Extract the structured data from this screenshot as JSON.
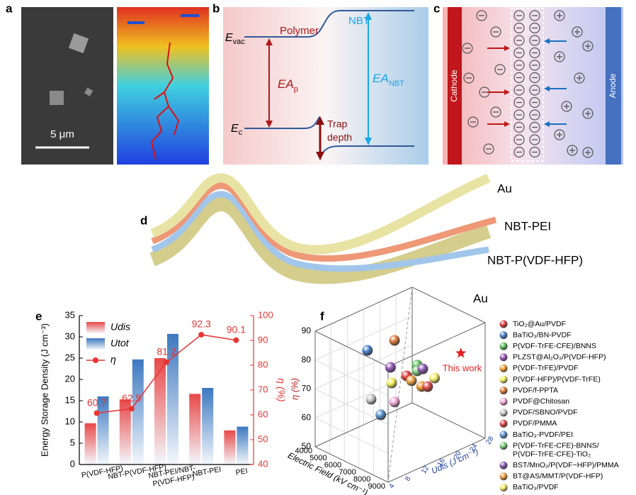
{
  "panel_labels": [
    "a",
    "b",
    "c",
    "d",
    "e",
    "f"
  ],
  "panel_a": {
    "scale_bar": "5 μm"
  },
  "panel_b": {
    "polymer": "Polymer",
    "nbt": "NBT",
    "e_vac": {
      "main": "E",
      "sub": "vac"
    },
    "e_c": {
      "main": "E",
      "sub": "c"
    },
    "ea_p": {
      "main": "EA",
      "sub": "p"
    },
    "ea_nbt": {
      "main": "EA",
      "sub": "NBT"
    },
    "trap_depth": [
      "Trap",
      "depth"
    ]
  },
  "panel_c": {
    "cathode": "Cathode",
    "anode": "Anode"
  },
  "panel_d": {
    "layers": [
      "Au",
      "NBT-PEI",
      "NBT-P(VDF-HFP)",
      "Au"
    ]
  },
  "chart_data": [
    {
      "type": "bar",
      "ylabel": "Energy Storage Density (J cm⁻³)",
      "y2label": "η (%)",
      "categories": [
        "P(VDF-HFP)",
        "NBT-P(VDF-HFP)",
        "NBT-PEI/NBT-\nP(VDF-HFP)",
        "NBT-PEI",
        "PEI"
      ],
      "series": [
        {
          "name": "Udis",
          "color": "#e84848",
          "values": [
            9.7,
            15.3,
            25.0,
            16.6,
            8.0
          ]
        },
        {
          "name": "Utot",
          "color": "#3c78c0",
          "values": [
            16.0,
            24.7,
            30.7,
            18.0,
            8.9
          ]
        },
        {
          "name": "η",
          "color": "#e83434",
          "values": [
            60.7,
            62.5,
            81.2,
            92.3,
            90.1
          ],
          "axis": "y2",
          "type": "line"
        }
      ],
      "ylim": [
        0,
        35
      ],
      "yticks": [
        0,
        5,
        10,
        15,
        20,
        25,
        30,
        35
      ],
      "y2lim": [
        40,
        100
      ],
      "y2ticks": [
        40,
        50,
        60,
        70,
        80,
        90,
        100
      ],
      "legend": "upper left"
    },
    {
      "type": "scatter3d",
      "xlabel": "Electric Field (kV cm⁻¹)",
      "ylabel": "η (%)",
      "zlabel": "Udis (J cm⁻³)",
      "xlim": [
        4000,
        9000
      ],
      "xticks": [
        4000,
        5000,
        6000,
        7000,
        8000,
        9000
      ],
      "ylim": [
        50,
        90
      ],
      "yticks": [
        50,
        60,
        70,
        80,
        90
      ],
      "zlim": [
        4,
        28
      ],
      "zticks": [
        4,
        8,
        12,
        16,
        20,
        24,
        28
      ],
      "annotation": "This work",
      "series": [
        {
          "name": "TiO₂@Au/PVDF",
          "color": "#e04040",
          "x": [
            7000
          ],
          "y": [
            74.4
          ],
          "z": [
            15.8
          ]
        },
        {
          "name": "BaTiO₃/BN-PVDF",
          "color": "#4a80c8",
          "x": [
            7000
          ],
          "y": [
            89.4
          ],
          "z": [
            6.1
          ]
        },
        {
          "name": "P(VDF-TrFE-CFE)/BNNS",
          "color": "#5cbc5c",
          "x": [
            7000
          ],
          "y": [
            76.5
          ],
          "z": [
            18.4
          ]
        },
        {
          "name": "PLZST@Al₂O₃/P(VDF-HFP)",
          "color": "#9a5ab8",
          "x": [
            7000
          ],
          "y": [
            79.9
          ],
          "z": [
            11.8
          ]
        },
        {
          "name": "P(VDF-TrFE)/PVDF",
          "color": "#f09a30",
          "x": [
            7000
          ],
          "y": [
            68.4
          ],
          "z": [
            19.5
          ]
        },
        {
          "name": "P(VDF-HFP)/P(VDF-TrFE)",
          "color": "#f2ee5a",
          "x": [
            7000
          ],
          "y": [
            74.3
          ],
          "z": [
            12.1
          ]
        },
        {
          "name": "PVDF/f-PPTA",
          "color": "#d87a3a",
          "x": [
            7000
          ],
          "y": [
            88.6
          ],
          "z": [
            12.8
          ]
        },
        {
          "name": "PVDF@Chitosan",
          "color": "#f0a8d8",
          "x": [
            7000
          ],
          "y": [
            67.3
          ],
          "z": [
            12.8
          ]
        },
        {
          "name": "PVDF/SBNO/PVDF",
          "color": "#c4c4c4",
          "x": [
            7000
          ],
          "y": [
            71.9
          ],
          "z": [
            7.0
          ]
        },
        {
          "name": "PVDF/PMMA",
          "color": "#d84848",
          "x": [
            7000
          ],
          "y": [
            67.4
          ],
          "z": [
            21
          ]
        },
        {
          "name": "BaTiO₃-PVDF/PEI",
          "color": "#5a90c8",
          "x": [
            7000
          ],
          "y": [
            65
          ],
          "z": [
            9.4
          ]
        },
        {
          "name": "P(VDF-TrFE-CFE)-BNNS/\nP(VDF-TrFE-CFE)-TiO₂",
          "color": "#78c878",
          "x": [
            7000
          ],
          "y": [
            74.5
          ],
          "z": [
            18.4
          ]
        },
        {
          "name": "BST/MnO₂/P(VDF−HFP)/PMMA",
          "color": "#8a5ab0",
          "x": [
            7000
          ],
          "y": [
            74.3
          ],
          "z": [
            19.8
          ]
        },
        {
          "name": "BT@AS/MMT/P(VDF-HFP)",
          "color": "#e8a040",
          "x": [
            7000
          ],
          "y": [
            72
          ],
          "z": [
            17
          ]
        },
        {
          "name": "BaTiO₃/PVDF",
          "color": "#f6ee70",
          "x": [
            7000
          ],
          "y": [
            69.3
          ],
          "z": [
            22.7
          ]
        },
        {
          "name": "This work",
          "color": "#e02020",
          "marker": "star",
          "x": [
            8000
          ],
          "y": [
            78.5
          ],
          "z": [
            25.6
          ]
        }
      ]
    }
  ]
}
